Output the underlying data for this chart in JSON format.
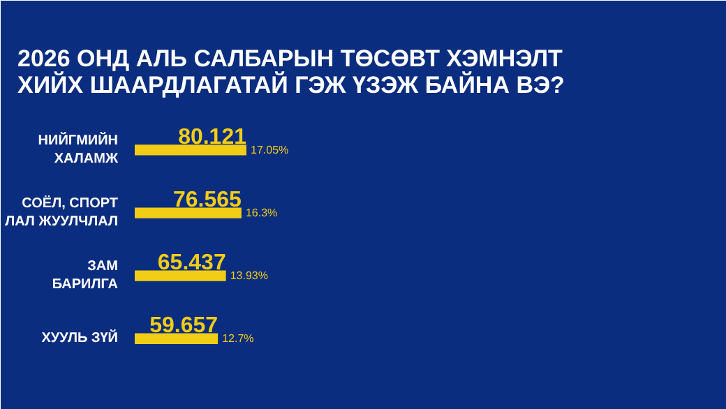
{
  "chart_data": {
    "type": "bar",
    "orientation": "horizontal",
    "title": "2026 ОНД АЛЬ САЛБАРЫН ТӨСӨВТ ХЭМНЭЛТ ХИЙХ ШААРДЛАГАТАЙ ГЭЖ ҮЗЭЖ БАЙНА ВЭ?",
    "categories": [
      "НИЙГМИЙН ХАЛАМЖ",
      "СОЁЛ, СПОРТ ЛАЛ ЖУУЛЧЛАЛ",
      "ЗАМ БАРИЛГА",
      "ХУУЛЬ ЗҮЙ"
    ],
    "values": [
      80.121,
      76.565,
      65.437,
      59.657
    ],
    "color": "#f2cd16",
    "data_labels": true,
    "annotations": [
      {
        "text": "17.05%",
        "x": 80.121,
        "y": "НИЙГМИЙН ХАЛАМЖ"
      },
      {
        "text": "16.3%",
        "x": 76.565,
        "y": "СОЁЛ, СПОРТ ЛАЛ ЖУУЛЧЛАЛ"
      },
      {
        "text": "13.93%",
        "x": 65.437,
        "y": "ЗАМ БАРИЛГА"
      },
      {
        "text": "12.7%",
        "x": 59.657,
        "y": "ХУУЛЬ ЗҮЙ"
      }
    ],
    "grid": false
  }
}
